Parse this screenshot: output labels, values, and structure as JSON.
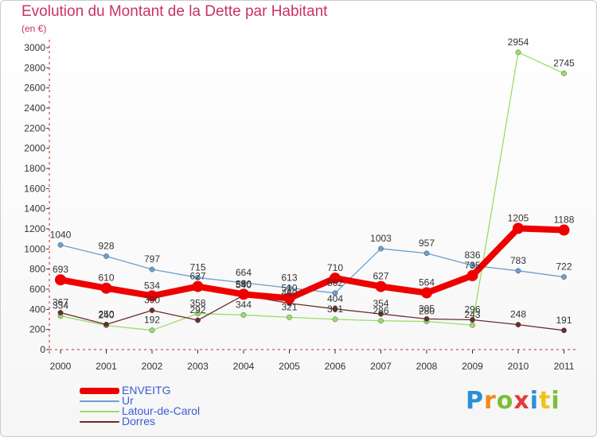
{
  "chart_data": {
    "type": "line",
    "title": "Evolution du Montant de la Dette par Habitant",
    "unit_label": "(en €)",
    "x": [
      "2000",
      "2001",
      "2002",
      "2003",
      "2004",
      "2005",
      "2006",
      "2007",
      "2008",
      "2009",
      "2010",
      "2011"
    ],
    "ylim": [
      0,
      3000
    ],
    "yticks": [
      0,
      200,
      400,
      600,
      800,
      1000,
      1200,
      1400,
      1600,
      1800,
      2000,
      2200,
      2400,
      2600,
      2800,
      3000
    ],
    "grid": false,
    "legend_position": "bottom-left",
    "series": [
      {
        "name": "ENVEITG",
        "color": "#ee0000",
        "values": [
          693,
          610,
          534,
          627,
          550,
          510,
          710,
          627,
          564,
          735,
          1205,
          1188
        ]
      },
      {
        "name": "Ur",
        "color": "#6a9fd0",
        "values": [
          1040,
          928,
          797,
          715,
          664,
          613,
          562,
          1003,
          957,
          836,
          783,
          722
        ]
      },
      {
        "name": "Latour-de-Carol",
        "color": "#99dd66",
        "values": [
          334,
          240,
          192,
          358,
          344,
          321,
          301,
          286,
          280,
          243,
          2954,
          2745
        ]
      },
      {
        "name": "Dorres",
        "color": "#6b2c2c",
        "values": [
          367,
          250,
          390,
          292,
          540,
          460,
          404,
          354,
          305,
          296,
          248,
          191
        ]
      }
    ]
  },
  "brand": {
    "letters": [
      "P",
      "r",
      "o",
      "x",
      "i",
      "t",
      "i"
    ],
    "colors": [
      "#2a8fd8",
      "#f08a1c",
      "#7bbf3a",
      "#e23b3b",
      "#2a8fd8",
      "#f0c21c",
      "#7bbf3a"
    ]
  }
}
